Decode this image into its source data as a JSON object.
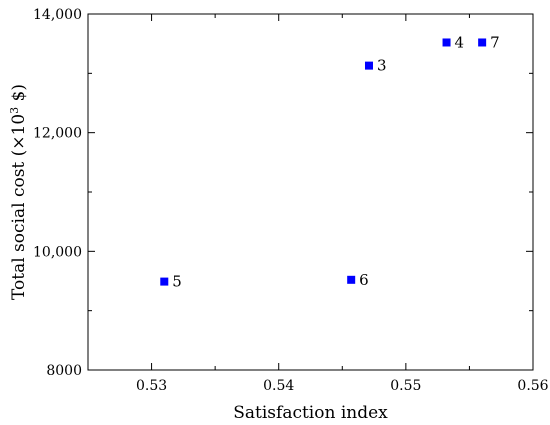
{
  "chart_data": {
    "type": "scatter",
    "xlabel": "Satisfaction index",
    "ylabel": "Total social cost (×10",
    "ylabel_sup": "3",
    "ylabel_unit": " $)",
    "xlim": [
      0.525,
      0.56
    ],
    "ylim": [
      8000,
      14000
    ],
    "x_ticks": [
      0.53,
      0.54,
      0.55,
      0.56
    ],
    "x_tick_labels": [
      "0.53",
      "0.54",
      "0.55",
      "0.56"
    ],
    "y_ticks": [
      8000,
      10000,
      12000,
      14000
    ],
    "y_tick_labels": [
      "8000",
      "10,000",
      "12,000",
      "14,000"
    ],
    "grid": false,
    "marker_color": "#0000ff",
    "marker_shape": "square",
    "points": [
      {
        "label": "3",
        "x": 0.5471,
        "y": 13130
      },
      {
        "label": "4",
        "x": 0.5532,
        "y": 13520
      },
      {
        "label": "7",
        "x": 0.556,
        "y": 13520
      },
      {
        "label": "5",
        "x": 0.531,
        "y": 9490
      },
      {
        "label": "6",
        "x": 0.5457,
        "y": 9520
      }
    ]
  }
}
